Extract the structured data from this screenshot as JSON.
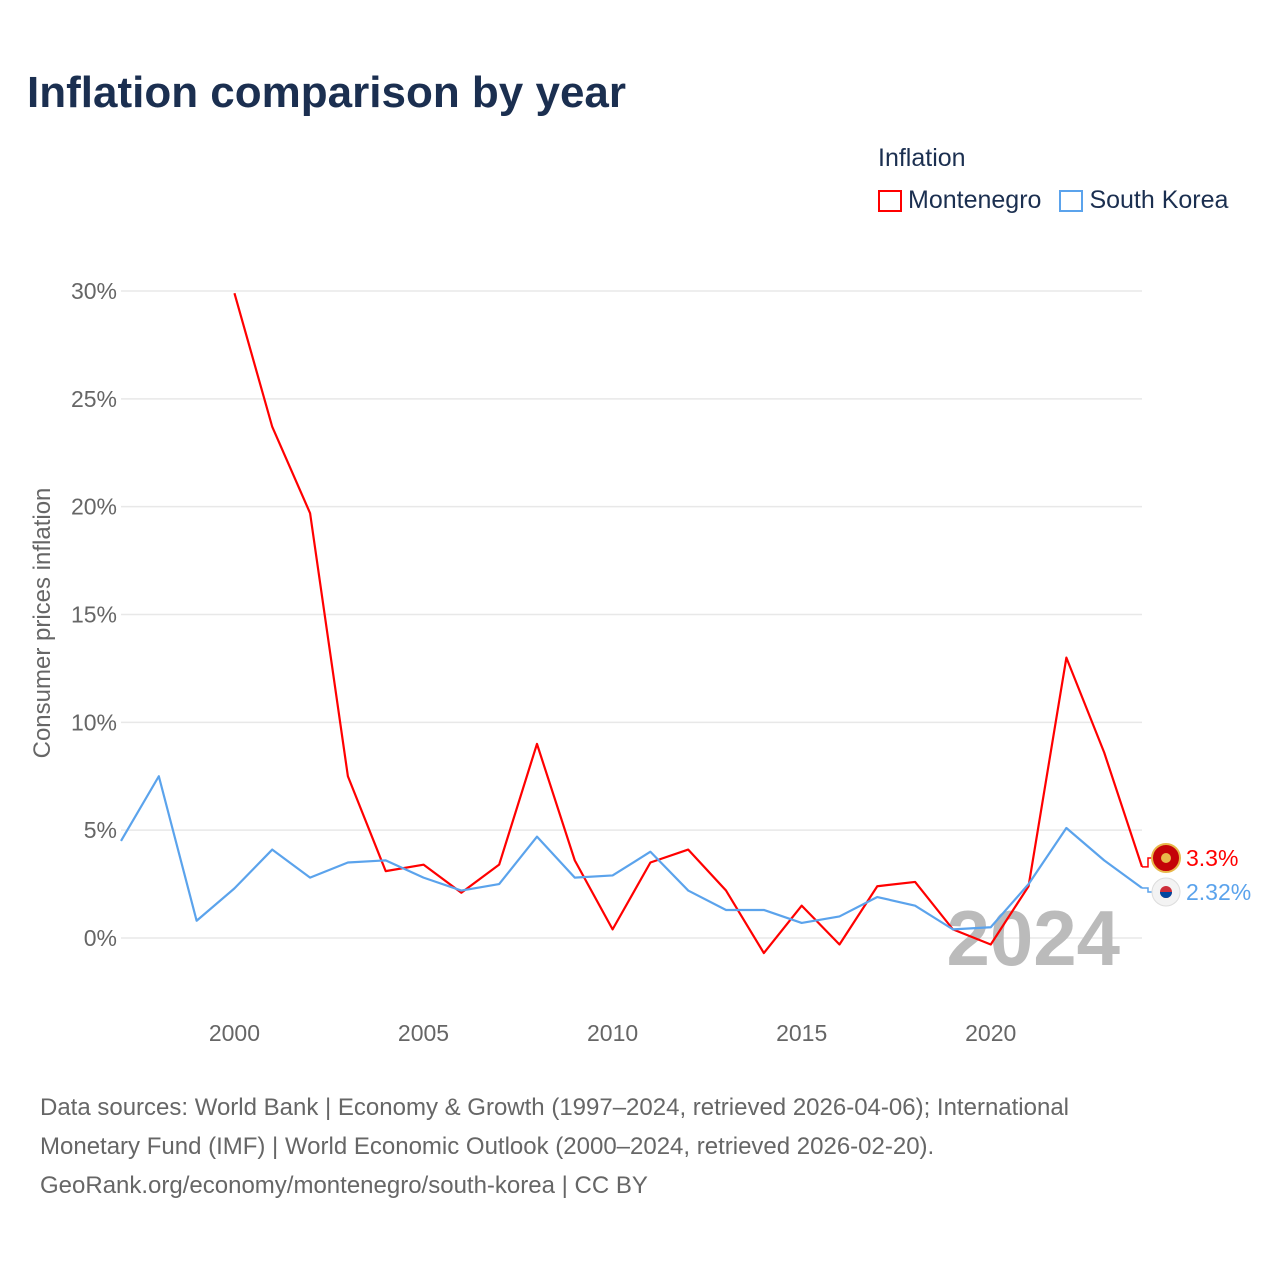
{
  "title": "Inflation comparison by year",
  "legend": {
    "title": "Inflation",
    "items": [
      {
        "label": "Montenegro",
        "color": "#ff0000"
      },
      {
        "label": "South Korea",
        "color": "#5ba3ec"
      }
    ]
  },
  "watermark_year": "2024",
  "source_lines": [
    "Data sources: World Bank | Economy & Growth (1997–2024, retrieved 2026-04-06); International",
    "Monetary Fund (IMF) | World Economic Outlook (2000–2024, retrieved 2026-02-20).",
    "GeoRank.org/economy/montenegro/south-korea | CC BY"
  ],
  "chart_data": {
    "type": "line",
    "title": "Inflation comparison by year",
    "ylabel": "Consumer prices inflation",
    "xlabel": "",
    "xlim": [
      1997,
      2024
    ],
    "ylim": [
      -3,
      30
    ],
    "y_ticks": [
      0,
      5,
      10,
      15,
      20,
      25,
      30
    ],
    "y_tick_labels": [
      "0%",
      "5%",
      "10%",
      "15%",
      "20%",
      "25%",
      "30%"
    ],
    "x_ticks": [
      2000,
      2005,
      2010,
      2015,
      2020
    ],
    "x_tick_labels": [
      "2000",
      "2005",
      "2010",
      "2015",
      "2020"
    ],
    "grid": true,
    "legend_position": "top-right",
    "series": [
      {
        "name": "Montenegro",
        "color": "#ff0000",
        "end_label": "3.3%",
        "x": [
          2000,
          2001,
          2002,
          2003,
          2004,
          2005,
          2006,
          2007,
          2008,
          2009,
          2010,
          2011,
          2012,
          2013,
          2014,
          2015,
          2016,
          2017,
          2018,
          2019,
          2020,
          2021,
          2022,
          2023,
          2024
        ],
        "values": [
          29.9,
          23.7,
          19.7,
          7.5,
          3.1,
          3.4,
          2.1,
          3.4,
          9.0,
          3.6,
          0.4,
          3.5,
          4.1,
          2.2,
          -0.7,
          1.5,
          -0.3,
          2.4,
          2.6,
          0.4,
          -0.3,
          2.4,
          13.0,
          8.6,
          3.3
        ]
      },
      {
        "name": "South Korea",
        "color": "#5ba3ec",
        "end_label": "2.32%",
        "x": [
          1997,
          1998,
          1999,
          2000,
          2001,
          2002,
          2003,
          2004,
          2005,
          2006,
          2007,
          2008,
          2009,
          2010,
          2011,
          2012,
          2013,
          2014,
          2015,
          2016,
          2017,
          2018,
          2019,
          2020,
          2021,
          2022,
          2023,
          2024
        ],
        "values": [
          4.5,
          7.5,
          0.8,
          2.3,
          4.1,
          2.8,
          3.5,
          3.6,
          2.8,
          2.2,
          2.5,
          4.7,
          2.8,
          2.9,
          4.0,
          2.2,
          1.3,
          1.3,
          0.7,
          1.0,
          1.9,
          1.5,
          0.4,
          0.5,
          2.5,
          5.1,
          3.6,
          2.32
        ]
      }
    ]
  }
}
